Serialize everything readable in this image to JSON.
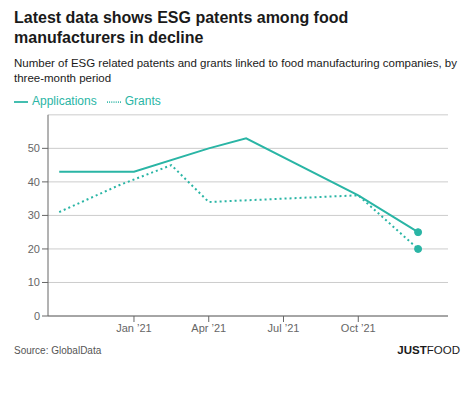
{
  "chart_data": {
    "type": "line",
    "title": "Latest data shows ESG patents among food manufacturers in decline",
    "subtitle": "Number of ESG related patents and grants linked to food manufacturing companies, by three-month period",
    "source": "Source: GlobalData",
    "annotations": [
      "JUST",
      "FOOD"
    ],
    "series": [
      {
        "name": "Applications",
        "color": "#2ab5a5",
        "line_style": "solid",
        "marker": "end",
        "x": [
          0,
          1,
          2,
          2.5,
          4,
          4.8
        ],
        "values": [
          43,
          43,
          50,
          53,
          36,
          25
        ]
      },
      {
        "name": "Grants",
        "color": "#2ab5a5",
        "line_style": "dotted",
        "marker": "end",
        "x": [
          0,
          0.8,
          1.5,
          2,
          3,
          4,
          4.8
        ],
        "values": [
          31,
          39,
          45,
          34,
          35,
          36,
          20
        ]
      }
    ],
    "xlim": [
      -0.15,
      5.2
    ],
    "xticks": [
      {
        "value": 1,
        "label": "Jan ’21"
      },
      {
        "value": 2,
        "label": "Apr ’21"
      },
      {
        "value": 3,
        "label": "Jul ’21"
      },
      {
        "value": 4,
        "label": "Oct ’21"
      }
    ],
    "ylim": [
      0,
      60
    ],
    "yticks": [
      0,
      10,
      20,
      30,
      40,
      50
    ],
    "grid": true,
    "legend": "top"
  }
}
